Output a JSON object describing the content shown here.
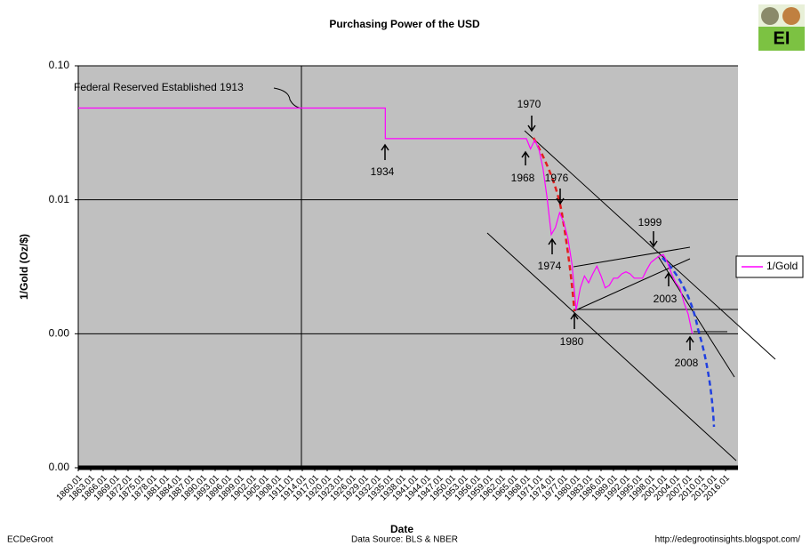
{
  "chart_data": {
    "type": "line",
    "title": "Purchasing Power of the USD",
    "xlabel": "Date",
    "ylabel": "1/Gold (Oz/$)",
    "log_y": true,
    "grid": true,
    "legend": "right",
    "logo_text": "EI",
    "footer_left": "ECDeGroot",
    "footer_center": "Data Source:  BLS & NBER",
    "footer_right": "http://edegrootinsights.blogspot.com/",
    "xlim": [
      1860,
      2019
    ],
    "ylim": [
      0.0001,
      0.1
    ],
    "yticks": [
      {
        "value": 0.1,
        "label": "0.10"
      },
      {
        "value": 0.01,
        "label": "0.01"
      },
      {
        "value": 0.001,
        "label": "0.00"
      },
      {
        "value": 0.0001,
        "label": "0.00"
      }
    ],
    "xticks": [
      {
        "value": 1860,
        "label": "1860.01"
      },
      {
        "value": 1863,
        "label": "1863.01"
      },
      {
        "value": 1866,
        "label": "1866.01"
      },
      {
        "value": 1869,
        "label": "1869.01"
      },
      {
        "value": 1872,
        "label": "1872.01"
      },
      {
        "value": 1875,
        "label": "1875.01"
      },
      {
        "value": 1878,
        "label": "1878.01"
      },
      {
        "value": 1881,
        "label": "1881.01"
      },
      {
        "value": 1884,
        "label": "1884.01"
      },
      {
        "value": 1887,
        "label": "1887.01"
      },
      {
        "value": 1890,
        "label": "1890.01"
      },
      {
        "value": 1893,
        "label": "1893.01"
      },
      {
        "value": 1896,
        "label": "1896.01"
      },
      {
        "value": 1899,
        "label": "1899.01"
      },
      {
        "value": 1902,
        "label": "1902.01"
      },
      {
        "value": 1905,
        "label": "1905.01"
      },
      {
        "value": 1908,
        "label": "1908.01"
      },
      {
        "value": 1911,
        "label": "1911.01"
      },
      {
        "value": 1914,
        "label": "1914.01"
      },
      {
        "value": 1917,
        "label": "1917.01"
      },
      {
        "value": 1920,
        "label": "1920.01"
      },
      {
        "value": 1923,
        "label": "1923.01"
      },
      {
        "value": 1926,
        "label": "1926.01"
      },
      {
        "value": 1929,
        "label": "1929.01"
      },
      {
        "value": 1932,
        "label": "1932.01"
      },
      {
        "value": 1935,
        "label": "1935.01"
      },
      {
        "value": 1938,
        "label": "1938.01"
      },
      {
        "value": 1941,
        "label": "1941.01"
      },
      {
        "value": 1944,
        "label": "1944.01"
      },
      {
        "value": 1947,
        "label": "1947.01"
      },
      {
        "value": 1950,
        "label": "1950.01"
      },
      {
        "value": 1953,
        "label": "1953.01"
      },
      {
        "value": 1956,
        "label": "1956.01"
      },
      {
        "value": 1959,
        "label": "1959.01"
      },
      {
        "value": 1962,
        "label": "1962.01"
      },
      {
        "value": 1965,
        "label": "1965.01"
      },
      {
        "value": 1968,
        "label": "1968.01"
      },
      {
        "value": 1971,
        "label": "1971.01"
      },
      {
        "value": 1974,
        "label": "1974.01"
      },
      {
        "value": 1977,
        "label": "1977.01"
      },
      {
        "value": 1980,
        "label": "1980.01"
      },
      {
        "value": 1983,
        "label": "1983.01"
      },
      {
        "value": 1986,
        "label": "1986.01"
      },
      {
        "value": 1989,
        "label": "1989.01"
      },
      {
        "value": 1992,
        "label": "1992.01"
      },
      {
        "value": 1995,
        "label": "1995.01"
      },
      {
        "value": 1998,
        "label": "1998.01"
      },
      {
        "value": 2001,
        "label": "2001.01"
      },
      {
        "value": 2004,
        "label": "2004.01"
      },
      {
        "value": 2007,
        "label": "2007.01"
      },
      {
        "value": 2010,
        "label": "2010.01"
      },
      {
        "value": 2013,
        "label": "2013.01"
      },
      {
        "value": 2016,
        "label": "2016.01"
      }
    ],
    "x": [
      1860,
      1934,
      1934,
      1968,
      1969,
      1970,
      1971,
      1972,
      1973,
      1974,
      1975,
      1976,
      1977,
      1978,
      1979,
      1980,
      1981,
      1982,
      1983,
      1984,
      1985,
      1986,
      1987,
      1988,
      1989,
      1990,
      1991,
      1992,
      1993,
      1994,
      1995,
      1996,
      1997,
      1998,
      1999,
      2000,
      2001,
      2002,
      2003,
      2004,
      2005,
      2006,
      2007,
      2008
    ],
    "series": [
      {
        "name": "1/Gold",
        "color": "#ff00ff",
        "values": [
          0.0484,
          0.0484,
          0.0286,
          0.0286,
          0.024,
          0.0278,
          0.024,
          0.0172,
          0.0103,
          0.0055,
          0.0062,
          0.008,
          0.0068,
          0.0052,
          0.0033,
          0.0015,
          0.0022,
          0.0027,
          0.0024,
          0.0028,
          0.0032,
          0.0027,
          0.0022,
          0.0023,
          0.0026,
          0.0026,
          0.0028,
          0.0029,
          0.0028,
          0.0026,
          0.0026,
          0.0026,
          0.003,
          0.0034,
          0.0036,
          0.0038,
          0.0039,
          0.0034,
          0.0028,
          0.0024,
          0.0022,
          0.0017,
          0.0014,
          0.001
        ]
      }
    ],
    "annotations": [
      "Federal Reserved Established 1913",
      "1970",
      "1934",
      "1968",
      "1976",
      "1999",
      "1974",
      "2003",
      "1980",
      "2008"
    ]
  }
}
